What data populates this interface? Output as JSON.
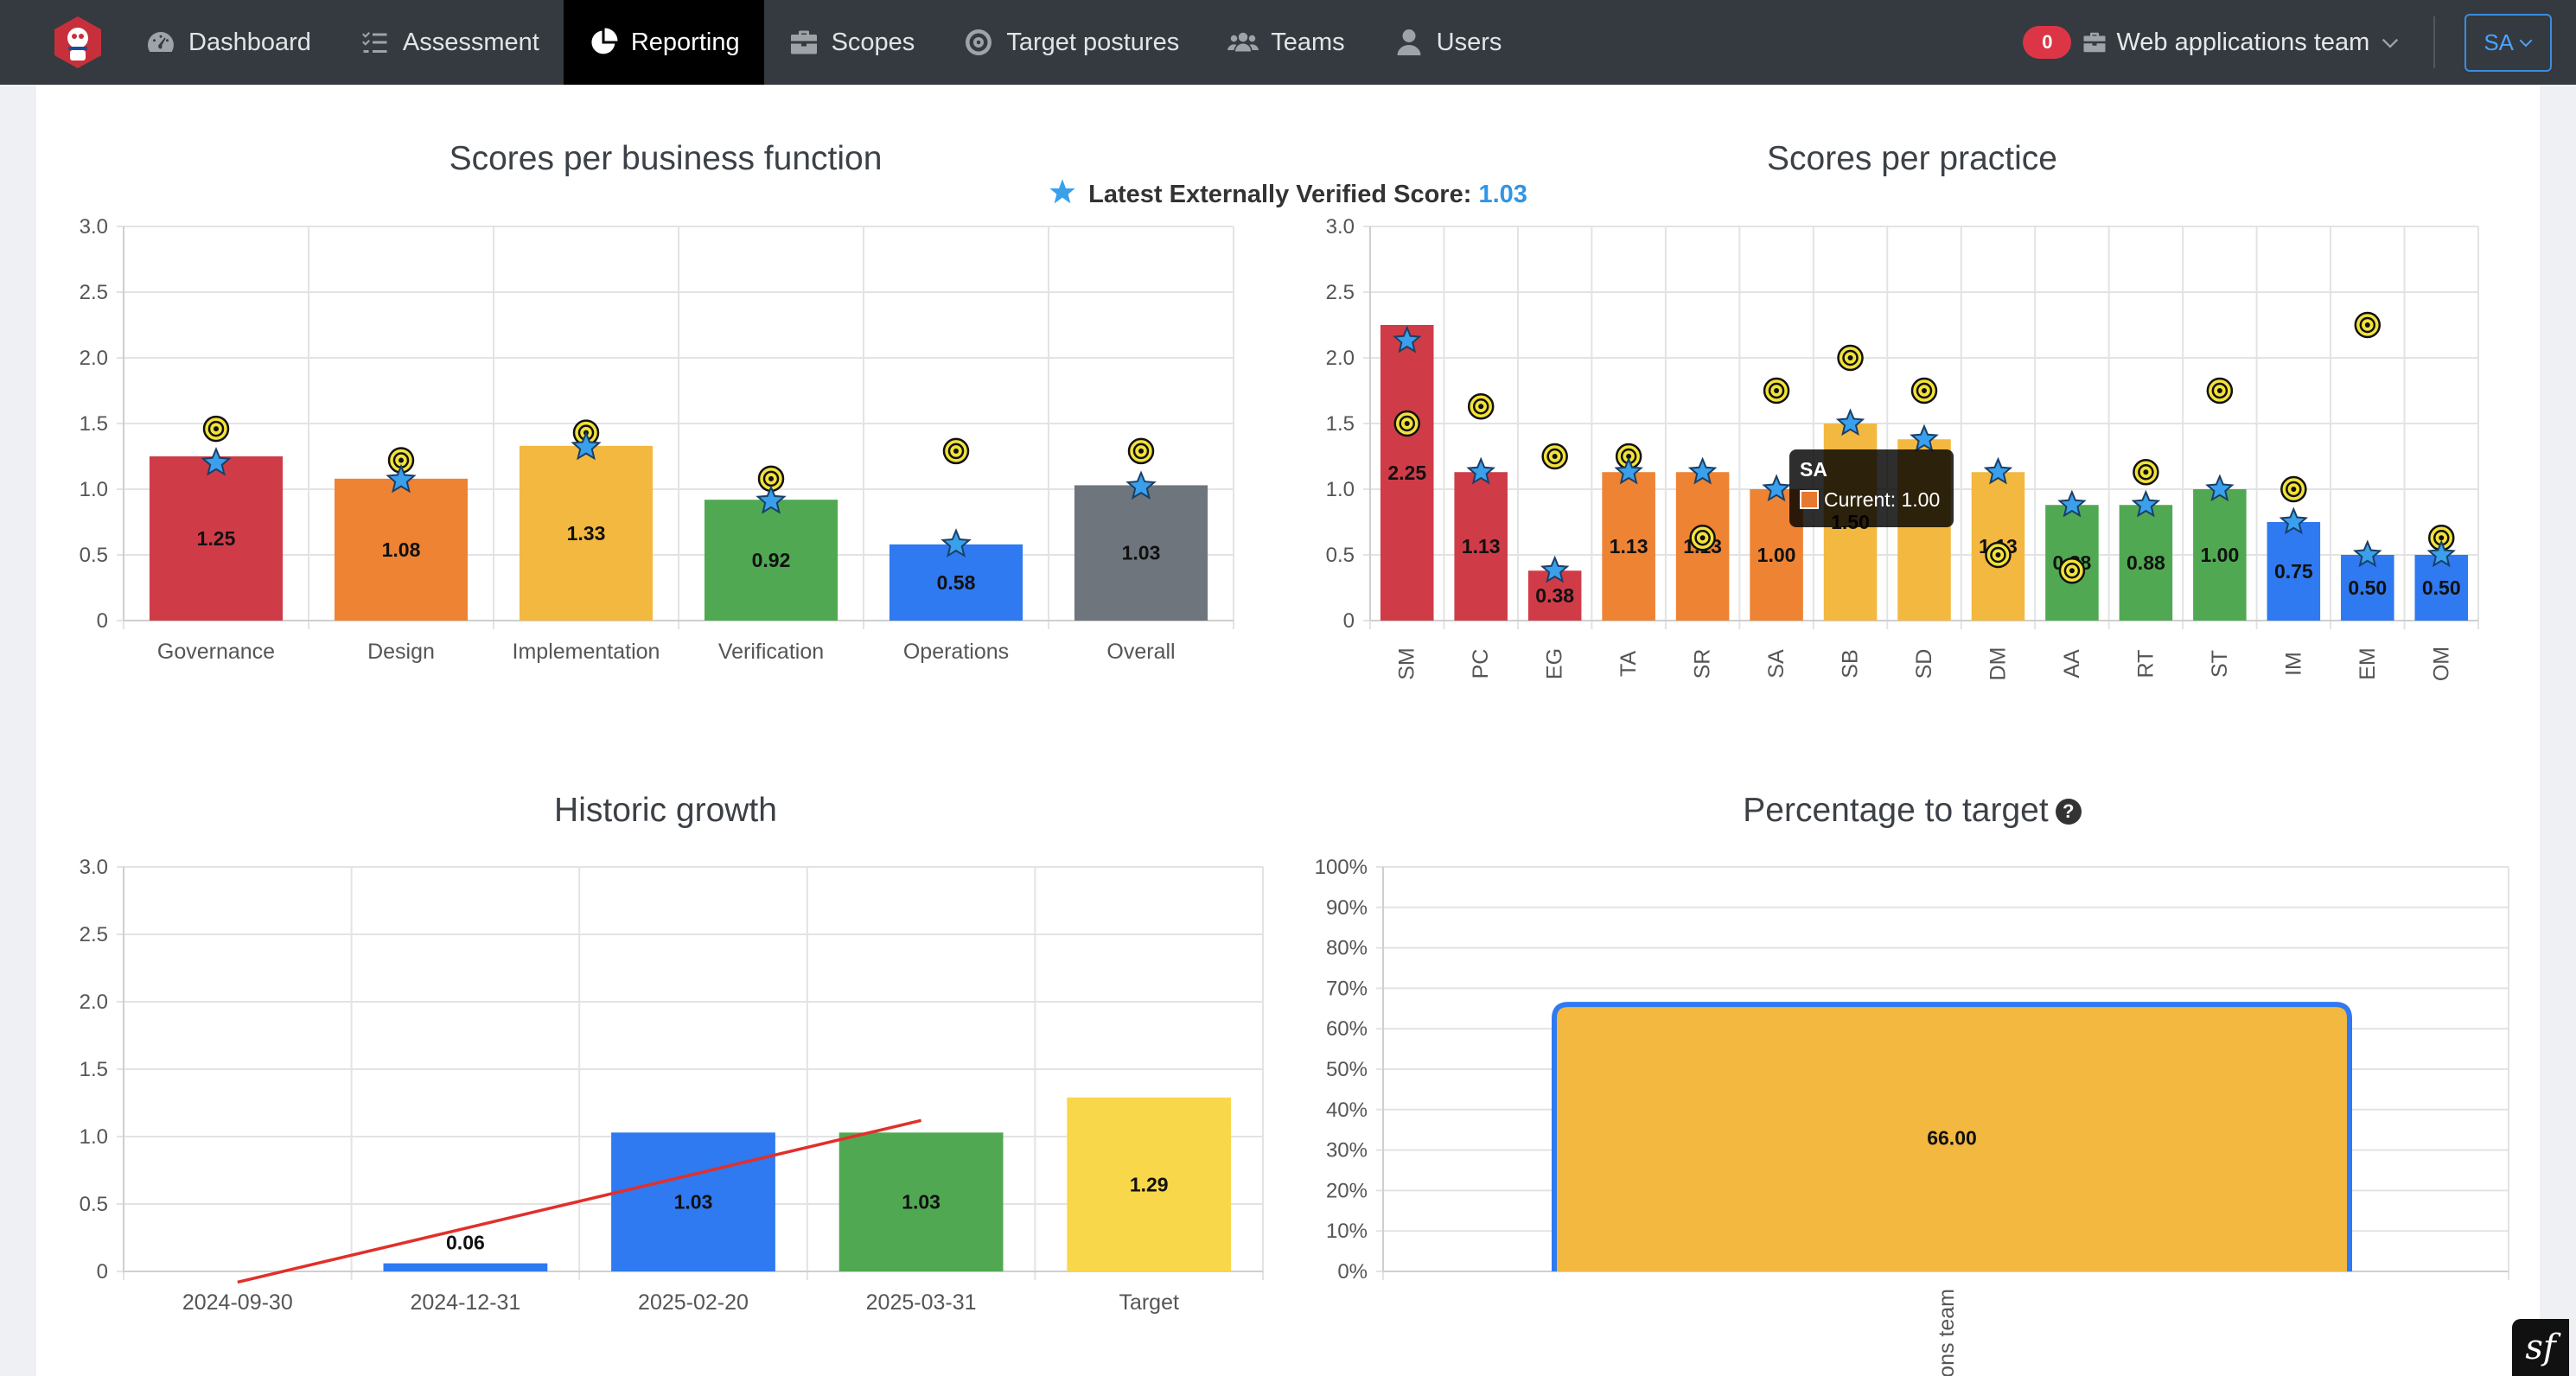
{
  "nav": {
    "items": [
      {
        "label": "Dashboard",
        "icon": "dashboard-icon"
      },
      {
        "label": "Assessment",
        "icon": "checklist-icon"
      },
      {
        "label": "Reporting",
        "icon": "pie-chart-icon",
        "active": true
      },
      {
        "label": "Scopes",
        "icon": "briefcase-icon"
      },
      {
        "label": "Target postures",
        "icon": "target-icon"
      },
      {
        "label": "Teams",
        "icon": "users-icon"
      },
      {
        "label": "Users",
        "icon": "user-icon"
      }
    ],
    "notification_count": "0",
    "team_label": "Web applications team",
    "user_initials": "SA"
  },
  "verified": {
    "label": "Latest Externally Verified Score:",
    "value": "1.03"
  },
  "colors": {
    "red": "#cf3c48",
    "orange": "#ee8334",
    "yellow": "#f3b840",
    "green": "#51a852",
    "blue": "#2f79f1",
    "gray": "#6f757c",
    "bright_yellow": "#f8d84a",
    "star": "#3aa0ec",
    "trend": "#e0302a"
  },
  "chart_data": [
    {
      "type": "bar",
      "title": "Scores per business function",
      "categories": [
        "Governance",
        "Design",
        "Implementation",
        "Verification",
        "Operations",
        "Overall"
      ],
      "series": [
        {
          "name": "Current",
          "values": [
            1.25,
            1.08,
            1.33,
            0.92,
            0.58,
            1.03
          ]
        },
        {
          "values": [
            1.2,
            1.07,
            1.32,
            0.91,
            0.58,
            1.02
          ],
          "marker": "star"
        },
        {
          "values": [
            1.46,
            1.22,
            1.43,
            1.08,
            1.29,
            1.29
          ],
          "marker": "target"
        }
      ],
      "value_labels": [
        "1.25",
        "1.08",
        "1.33",
        "0.92",
        "0.58",
        "1.03"
      ],
      "bar_colors": [
        "red",
        "orange",
        "yellow",
        "green",
        "blue",
        "gray"
      ],
      "ylim": [
        0,
        3
      ],
      "yticks": [
        "3.0",
        "2.5",
        "2.0",
        "1.5",
        "1.0",
        "0.5",
        "0"
      ]
    },
    {
      "type": "bar",
      "title": "Scores per practice",
      "categories": [
        "SM",
        "PC",
        "EG",
        "TA",
        "SR",
        "SA",
        "SB",
        "SD",
        "DM",
        "AA",
        "RT",
        "ST",
        "IM",
        "EM",
        "OM"
      ],
      "series": [
        {
          "name": "Current",
          "values": [
            2.25,
            1.13,
            0.38,
            1.13,
            1.13,
            1.0,
            1.5,
            1.38,
            1.13,
            0.88,
            0.88,
            1.0,
            0.75,
            0.5,
            0.5
          ]
        },
        {
          "values": [
            2.13,
            1.13,
            0.38,
            1.13,
            1.13,
            1.0,
            1.5,
            1.38,
            1.13,
            0.88,
            0.88,
            1.0,
            0.75,
            0.5,
            0.5
          ],
          "marker": "star"
        },
        {
          "values": [
            1.5,
            1.63,
            1.25,
            1.25,
            0.63,
            1.75,
            2.0,
            1.75,
            0.5,
            0.38,
            1.13,
            1.75,
            1.0,
            2.25,
            0.63
          ],
          "marker": "target"
        }
      ],
      "value_labels": [
        "2.25",
        "1.13",
        "0.38",
        "1.13",
        "1.13",
        "1.00",
        "1.50",
        "",
        "1.13",
        "0.88",
        "0.88",
        "1.00",
        "0.75",
        "0.50",
        "0.50"
      ],
      "bar_colors": [
        "red",
        "red",
        "red",
        "orange",
        "orange",
        "orange",
        "yellow",
        "yellow",
        "yellow",
        "green",
        "green",
        "green",
        "blue",
        "blue",
        "blue"
      ],
      "ylim": [
        0,
        3
      ],
      "yticks": [
        "3.0",
        "2.5",
        "2.0",
        "1.5",
        "1.0",
        "0.5",
        "0"
      ],
      "tooltip": {
        "title": "SA",
        "text": "Current: 1.00"
      }
    },
    {
      "type": "bar",
      "title": "Historic growth",
      "categories": [
        "2024-09-30",
        "2024-12-31",
        "2025-02-20",
        "2025-03-31",
        "Target"
      ],
      "values": [
        0,
        0.06,
        1.03,
        1.03,
        1.29
      ],
      "value_labels": [
        "",
        "0.06",
        "1.03",
        "1.03",
        "1.29"
      ],
      "bar_colors": [
        "blue",
        "blue",
        "blue",
        "green",
        "bright_yellow"
      ],
      "trend_line": {
        "from": [
          0,
          -0.08
        ],
        "to": [
          3,
          1.12
        ]
      },
      "ylim": [
        0,
        3
      ],
      "yticks": [
        "3.0",
        "2.5",
        "2.0",
        "1.5",
        "1.0",
        "0.5",
        "0"
      ]
    },
    {
      "type": "bar",
      "title": "Percentage to target",
      "categories": [
        "Web applications team"
      ],
      "values": [
        66
      ],
      "value_labels": [
        "66.00"
      ],
      "ylim": [
        0,
        100
      ],
      "yticks": [
        "100%",
        "90%",
        "80%",
        "70%",
        "60%",
        "50%",
        "40%",
        "30%",
        "20%",
        "10%",
        "0%"
      ],
      "x_label_visible": "ions team"
    }
  ]
}
